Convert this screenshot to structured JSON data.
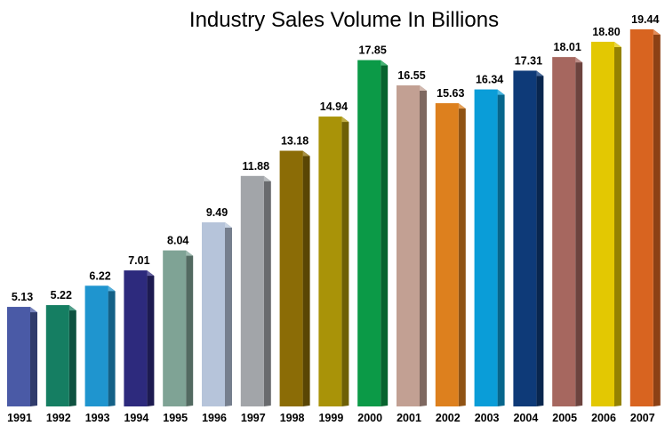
{
  "chart_data": {
    "type": "bar",
    "title": "Industry Sales Volume In Billions",
    "xlabel": "",
    "ylabel": "",
    "ylim": [
      0,
      19.44
    ],
    "grid": false,
    "legend": "none",
    "categories": [
      "1991",
      "1992",
      "1993",
      "1994",
      "1995",
      "1996",
      "1997",
      "1998",
      "1999",
      "2000",
      "2001",
      "2002",
      "2003",
      "2004",
      "2005",
      "2006",
      "2007"
    ],
    "values": [
      5.13,
      5.22,
      6.22,
      7.01,
      8.04,
      9.49,
      11.88,
      13.18,
      14.94,
      17.85,
      16.55,
      15.63,
      16.34,
      17.31,
      18.01,
      18.8,
      19.44
    ],
    "value_labels": [
      "5.13",
      "5.22",
      "6.22",
      "7.01",
      "8.04",
      "9.49",
      "11.88",
      "13.18",
      "14.94",
      "17.85",
      "16.55",
      "15.63",
      "16.34",
      "17.31",
      "18.01",
      "18.80",
      "19.44"
    ],
    "colors": [
      "#4a5aa6",
      "#157e62",
      "#1f95cf",
      "#2d2a7d",
      "#7fa395",
      "#b6c4da",
      "#a2a5a9",
      "#8b6c06",
      "#a99308",
      "#0b9a47",
      "#c2a093",
      "#dd801e",
      "#0a9dd8",
      "#0e3a78",
      "#a6675f",
      "#e3c802",
      "#d86420"
    ]
  }
}
